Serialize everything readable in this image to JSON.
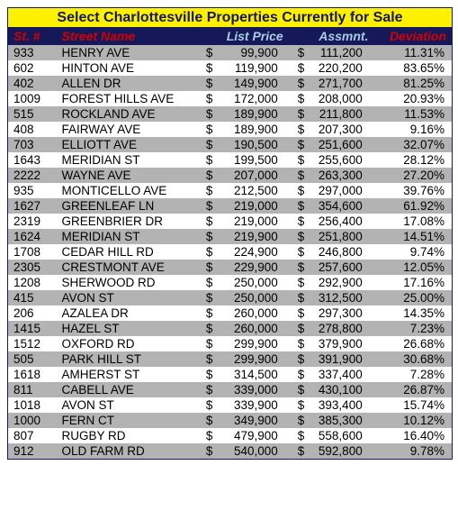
{
  "title": "Select Charlottesville Properties Currently for Sale",
  "header": {
    "num": "St. #",
    "name": "Street Name",
    "price": "List Price",
    "assmnt": "Assmnt.",
    "dev": "Deviation",
    "num_color": "#d40000",
    "name_color": "#d40000",
    "price_color": "#a8cde3",
    "assmnt_color": "#a8cde3",
    "dev_color": "#d40000"
  },
  "colors": {
    "title_bg": "#fef001",
    "title_fg": "#15195a",
    "header_bg": "#15195a",
    "row_odd": "#b3b3b3",
    "row_even": "#ffffff",
    "border": "#15195a"
  },
  "rows": [
    {
      "num": "933",
      "name": "HENRY AVE",
      "price": "99,900",
      "assmnt": "111,200",
      "dev": "11.31%"
    },
    {
      "num": "602",
      "name": "HINTON AVE",
      "price": "119,900",
      "assmnt": "220,200",
      "dev": "83.65%"
    },
    {
      "num": "402",
      "name": "ALLEN DR",
      "price": "149,900",
      "assmnt": "271,700",
      "dev": "81.25%"
    },
    {
      "num": "1009",
      "name": "FOREST HILLS AVE",
      "price": "172,000",
      "assmnt": "208,000",
      "dev": "20.93%"
    },
    {
      "num": "515",
      "name": "ROCKLAND AVE",
      "price": "189,900",
      "assmnt": "211,800",
      "dev": "11.53%"
    },
    {
      "num": "408",
      "name": "FAIRWAY AVE",
      "price": "189,900",
      "assmnt": "207,300",
      "dev": "9.16%"
    },
    {
      "num": "703",
      "name": "ELLIOTT AVE",
      "price": "190,500",
      "assmnt": "251,600",
      "dev": "32.07%"
    },
    {
      "num": "1643",
      "name": "MERIDIAN ST",
      "price": "199,500",
      "assmnt": "255,600",
      "dev": "28.12%"
    },
    {
      "num": "2222",
      "name": "WAYNE AVE",
      "price": "207,000",
      "assmnt": "263,300",
      "dev": "27.20%"
    },
    {
      "num": "935",
      "name": "MONTICELLO AVE",
      "price": "212,500",
      "assmnt": "297,000",
      "dev": "39.76%"
    },
    {
      "num": "1627",
      "name": "GREENLEAF LN",
      "price": "219,000",
      "assmnt": "354,600",
      "dev": "61.92%"
    },
    {
      "num": "2319",
      "name": "GREENBRIER DR",
      "price": "219,000",
      "assmnt": "256,400",
      "dev": "17.08%"
    },
    {
      "num": "1624",
      "name": "MERIDIAN ST",
      "price": "219,900",
      "assmnt": "251,800",
      "dev": "14.51%"
    },
    {
      "num": "1708",
      "name": "CEDAR HILL RD",
      "price": "224,900",
      "assmnt": "246,800",
      "dev": "9.74%"
    },
    {
      "num": "2305",
      "name": "CRESTMONT AVE",
      "price": "229,900",
      "assmnt": "257,600",
      "dev": "12.05%"
    },
    {
      "num": "1208",
      "name": "SHERWOOD RD",
      "price": "250,000",
      "assmnt": "292,900",
      "dev": "17.16%"
    },
    {
      "num": "415",
      "name": "AVON ST",
      "price": "250,000",
      "assmnt": "312,500",
      "dev": "25.00%"
    },
    {
      "num": "206",
      "name": "AZALEA DR",
      "price": "260,000",
      "assmnt": "297,300",
      "dev": "14.35%"
    },
    {
      "num": "1415",
      "name": "HAZEL ST",
      "price": "260,000",
      "assmnt": "278,800",
      "dev": "7.23%"
    },
    {
      "num": "1512",
      "name": "OXFORD RD",
      "price": "299,900",
      "assmnt": "379,900",
      "dev": "26.68%"
    },
    {
      "num": "505",
      "name": "PARK HILL ST",
      "price": "299,900",
      "assmnt": "391,900",
      "dev": "30.68%"
    },
    {
      "num": "1618",
      "name": "AMHERST ST",
      "price": "314,500",
      "assmnt": "337,400",
      "dev": "7.28%"
    },
    {
      "num": "811",
      "name": "CABELL AVE",
      "price": "339,000",
      "assmnt": "430,100",
      "dev": "26.87%"
    },
    {
      "num": "1018",
      "name": "AVON ST",
      "price": "339,900",
      "assmnt": "393,400",
      "dev": "15.74%"
    },
    {
      "num": "1000",
      "name": "FERN CT",
      "price": "349,900",
      "assmnt": "385,300",
      "dev": "10.12%"
    },
    {
      "num": "807",
      "name": "RUGBY RD",
      "price": "479,900",
      "assmnt": "558,600",
      "dev": "16.40%"
    },
    {
      "num": "912",
      "name": "OLD FARM RD",
      "price": "540,000",
      "assmnt": "592,800",
      "dev": "9.78%"
    }
  ]
}
